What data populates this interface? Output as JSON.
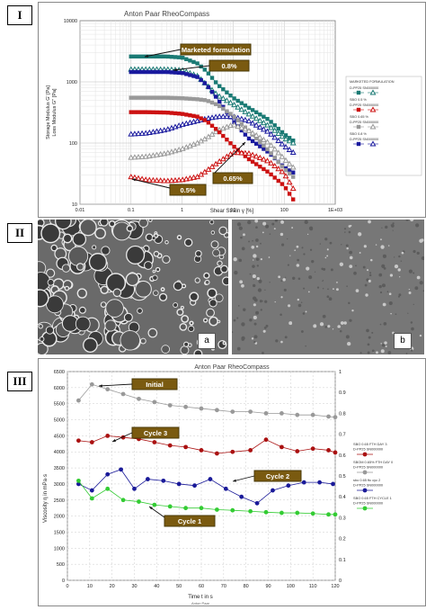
{
  "panel_labels": [
    "I",
    "II",
    "III"
  ],
  "chart_data": [
    {
      "type": "line",
      "title": "Anton Paar RheoCompass",
      "xlabel": "Shear Strain γ [%]",
      "ylabel": "Storage Modulus G' [Pa]\nLoss Modulus G'' [Pa]",
      "log_x": true,
      "log_y": true,
      "xlim": [
        0.01,
        1000
      ],
      "ylim": [
        10,
        10000
      ],
      "x_ticks": [
        "0.01",
        "0.1",
        "1",
        "10",
        "100",
        "1E+03"
      ],
      "y_ticks": [
        "10",
        "100",
        "1000",
        "10000"
      ],
      "grid": true,
      "legend_position": "right",
      "legend_title": "MARKETED FORMULATION",
      "legend_entries": [
        "D-PP25 SN000000",
        "SBO 0.5 %",
        "D-PP25 SN000000",
        "SBO 0.65 %",
        "D-PP25 SN000000",
        "SBO 0.8 %",
        "D-PP25 SN000000"
      ],
      "annotations": [
        "Marketed formulation",
        "0.8%",
        "0.65%",
        "0.5%"
      ],
      "x": [
        0.1,
        0.2,
        0.5,
        1,
        2,
        3,
        5,
        10,
        20,
        50,
        100,
        150
      ],
      "series": [
        {
          "color": "#1a7a74",
          "marker": "square",
          "values": [
            2600,
            2600,
            2600,
            2500,
            2000,
            1500,
            900,
            550,
            380,
            240,
            140,
            110
          ]
        },
        {
          "color": "#1a7a74",
          "marker": "triangle",
          "values": [
            1600,
            1600,
            1600,
            1550,
            1250,
            900,
            600,
            430,
            300,
            190,
            120,
            100
          ]
        },
        {
          "color": "#1a1a9e",
          "marker": "square",
          "values": [
            1450,
            1450,
            1450,
            1400,
            1200,
            900,
            520,
            230,
            120,
            70,
            40,
            33
          ]
        },
        {
          "color": "#1a1a9e",
          "marker": "triangle",
          "values": [
            140,
            145,
            165,
            200,
            230,
            250,
            270,
            270,
            230,
            150,
            90,
            70
          ]
        },
        {
          "color": "#999999",
          "marker": "square",
          "values": [
            550,
            550,
            550,
            540,
            520,
            500,
            420,
            280,
            160,
            75,
            38,
            28
          ]
        },
        {
          "color": "#999999",
          "marker": "triangle",
          "values": [
            58,
            60,
            68,
            80,
            100,
            120,
            160,
            200,
            160,
            100,
            55,
            40
          ]
        },
        {
          "color": "#cc1111",
          "marker": "square",
          "values": [
            320,
            320,
            315,
            300,
            270,
            230,
            160,
            90,
            55,
            33,
            20,
            12
          ]
        },
        {
          "color": "#cc1111",
          "marker": "triangle",
          "values": [
            28,
            25,
            24,
            25,
            28,
            35,
            48,
            70,
            68,
            50,
            32,
            18
          ]
        }
      ]
    },
    {
      "type": "line",
      "title": "Anton Paar RheoCompass",
      "xlabel": "Time t in s",
      "ylabel": "Viscosity η in mPa·s",
      "footer": "Anton Paar",
      "xlim": [
        0,
        120
      ],
      "ylim": [
        0,
        6500
      ],
      "y2lim": [
        0,
        1
      ],
      "x_ticks": [
        "0",
        "10",
        "20",
        "30",
        "40",
        "50",
        "60",
        "70",
        "80",
        "90",
        "100",
        "110",
        "120"
      ],
      "y_ticks": [
        "0",
        "500",
        "1000",
        "1500",
        "2000",
        "2500",
        "3000",
        "3500",
        "4000",
        "4500",
        "5000",
        "5500",
        "6000",
        "6500"
      ],
      "y2_ticks": [
        "0",
        "0.1",
        "0.2",
        "0.3",
        "0.4",
        "0.5",
        "0.6",
        "0.7",
        "0.8",
        "0.9",
        "1"
      ],
      "grid": true,
      "legend_position": "right",
      "annotations": [
        "Initial",
        "Cycle 3",
        "Cycle 2",
        "Cycle 1"
      ],
      "series": [
        {
          "name": "SBO 0.65 FTH DAY 3\nD-PP25 SN000000",
          "color": "#aa1111",
          "x": [
            5,
            11,
            18,
            25,
            32,
            39,
            46,
            53,
            60,
            67,
            74,
            82,
            89,
            96,
            103,
            110,
            117,
            120
          ],
          "values": [
            4350,
            4300,
            4500,
            4450,
            4400,
            4300,
            4200,
            4150,
            4050,
            3950,
            4000,
            4050,
            4380,
            4150,
            4020,
            4100,
            4050,
            3980
          ]
        },
        {
          "name": "SBOM 0.65% FTH DAY 0\nD-PP25 SN000000",
          "color": "#999999",
          "x": [
            5,
            11,
            18,
            25,
            32,
            39,
            46,
            53,
            60,
            67,
            74,
            82,
            89,
            96,
            103,
            110,
            117,
            120
          ],
          "values": [
            5600,
            6100,
            5950,
            5800,
            5650,
            5550,
            5450,
            5400,
            5350,
            5300,
            5250,
            5250,
            5200,
            5200,
            5150,
            5150,
            5100,
            5080
          ]
        },
        {
          "name": "sbo 0.65 ftc cyc 2\nD-PP25 SN000000",
          "color": "#1a1a99",
          "x": [
            5,
            11,
            18,
            24,
            30,
            36,
            43,
            50,
            57,
            64,
            71,
            78,
            85,
            92,
            99,
            106,
            113,
            119
          ],
          "values": [
            3000,
            2800,
            3300,
            3450,
            2850,
            3150,
            3100,
            3000,
            2950,
            3150,
            2850,
            2600,
            2400,
            2800,
            2950,
            3050,
            3050,
            3000
          ]
        },
        {
          "name": "SBO 0.65 FTH CYCLE 1\nD-PP25 SN000000",
          "color": "#33cc33",
          "x": [
            5,
            11,
            18,
            25,
            32,
            39,
            46,
            53,
            60,
            67,
            74,
            82,
            89,
            96,
            103,
            110,
            117,
            120
          ],
          "values": [
            3100,
            2550,
            2850,
            2500,
            2450,
            2350,
            2300,
            2250,
            2250,
            2200,
            2180,
            2150,
            2120,
            2100,
            2100,
            2080,
            2050,
            2050
          ]
        }
      ]
    }
  ],
  "micrographs": [
    {
      "label": "a"
    },
    {
      "label": "b"
    }
  ]
}
